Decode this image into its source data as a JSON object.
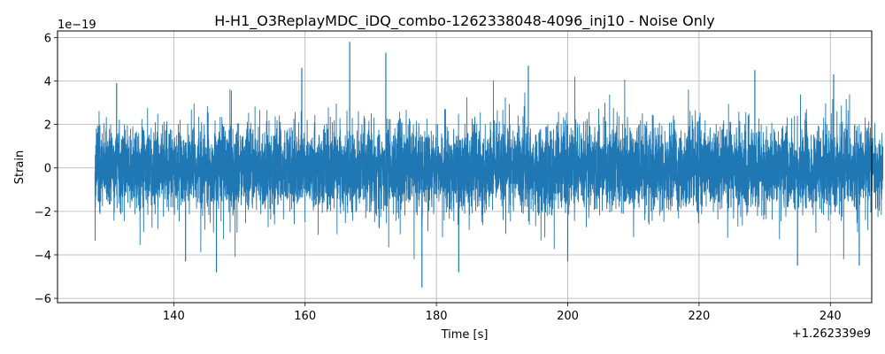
{
  "chart_data": {
    "type": "line",
    "title": "H-H1_O3ReplayMDC_iDQ_combo-1262338048-4096_inj10 - Noise Only",
    "xlabel": "Time [s]",
    "ylabel": "Strain",
    "x_offset_label": "+1.262339e9",
    "y_scale_label": "1e−19",
    "xlim": [
      122.3,
      246.3
    ],
    "ylim": [
      -6.2,
      6.3
    ],
    "x_ticks": [
      140,
      160,
      180,
      200,
      220,
      240
    ],
    "x_tick_labels": [
      "140",
      "160",
      "180",
      "200",
      "220",
      "240"
    ],
    "y_ticks": [
      -6,
      -4,
      -2,
      0,
      2,
      4,
      6
    ],
    "y_tick_labels": [
      "−6",
      "−4",
      "−2",
      "0",
      "2",
      "4",
      "6"
    ],
    "grid": true,
    "series": [
      {
        "color": "#1f77b4",
        "x_range": [
          128.0,
          248.0
        ],
        "envelope_y": [
          -5.5,
          5.8
        ],
        "typical_range": [
          -2.5,
          2.5
        ],
        "peaks": [
          {
            "x": 131.3,
            "y": 3.9
          },
          {
            "x": 141.8,
            "y": -4.3
          },
          {
            "x": 146.5,
            "y": -4.8
          },
          {
            "x": 159.5,
            "y": 4.6
          },
          {
            "x": 166.8,
            "y": 5.8
          },
          {
            "x": 172.3,
            "y": 5.3
          },
          {
            "x": 177.8,
            "y": -5.5
          },
          {
            "x": 183.4,
            "y": -4.8
          },
          {
            "x": 194.0,
            "y": 4.7
          },
          {
            "x": 200.0,
            "y": -4.3
          },
          {
            "x": 228.5,
            "y": 4.5
          },
          {
            "x": 235.0,
            "y": -4.5
          },
          {
            "x": 240.5,
            "y": 4.3
          },
          {
            "x": 244.4,
            "y": -4.5
          }
        ]
      }
    ]
  }
}
